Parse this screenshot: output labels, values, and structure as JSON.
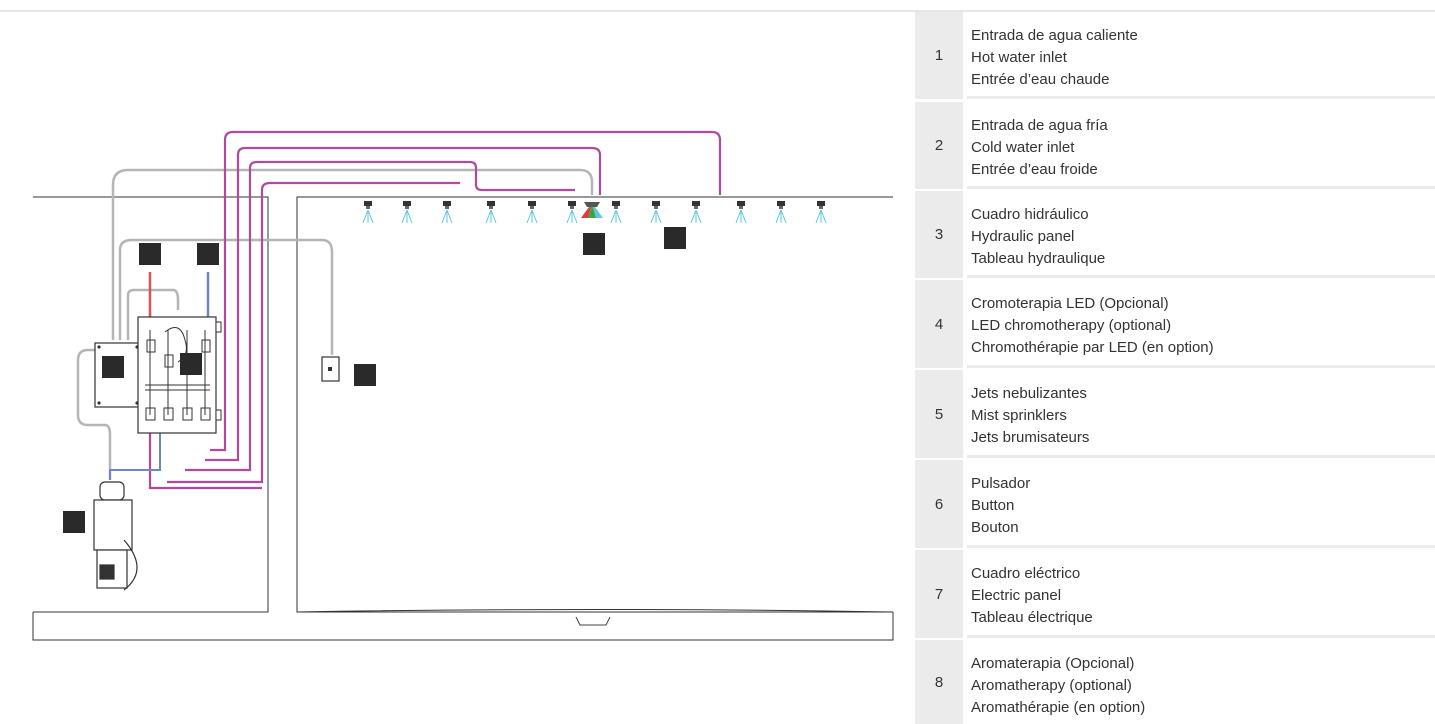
{
  "legend": [
    {
      "num": "1",
      "es": "Entrada de agua caliente",
      "en": "Hot water inlet",
      "fr": "Entrée d’eau chaude"
    },
    {
      "num": "2",
      "es": "Entrada de agua fría",
      "en": "Cold water inlet",
      "fr": "Entrée d’eau froide"
    },
    {
      "num": "3",
      "es": "Cuadro hidráulico",
      "en": "Hydraulic panel",
      "fr": "Tableau hydraulique"
    },
    {
      "num": "4",
      "es": "Cromoterapia LED (Opcional)",
      "en": "LED chromotherapy (optional)",
      "fr": "Chromothérapie par LED (en option)"
    },
    {
      "num": "5",
      "es": "Jets nebulizantes",
      "en": "Mist sprinklers",
      "fr": "Jets brumisateurs"
    },
    {
      "num": "6",
      "es": "Pulsador",
      "en": "Button",
      "fr": "Bouton"
    },
    {
      "num": "7",
      "es": "Cuadro eléctrico",
      "en": "Electric panel",
      "fr": "Tableau électrique"
    },
    {
      "num": "8",
      "es": "Aromaterapia (Opcional)",
      "en": "Aromatherapy (optional)",
      "fr": "Aromathérapie (en option)"
    }
  ],
  "colors": {
    "hot_pipe": "#d9534f",
    "cold_pipe": "#6f86c6",
    "mist_line": "#b04a9e",
    "cable": "#b5b5b5",
    "marker": "#2a2a2a",
    "legend_bg": "#ebebeb"
  }
}
